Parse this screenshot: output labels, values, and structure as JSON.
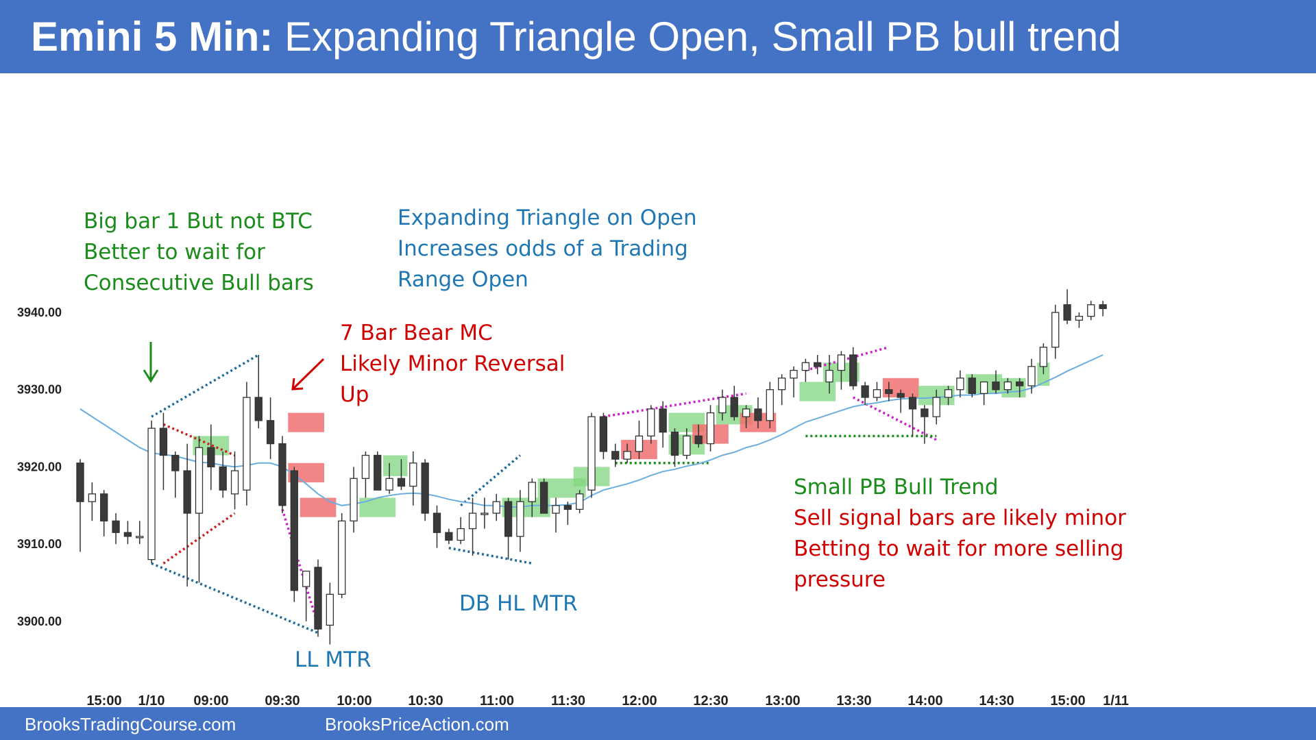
{
  "header": {
    "title_bold": "Emini 5 Min:",
    "title_rest": "Expanding Triangle Open, Small PB bull trend"
  },
  "footer": {
    "left_link": "BrooksTradingCourse.com",
    "right_link": "BrooksPriceAction.com"
  },
  "colors": {
    "header_bg": "#4472c4",
    "bull_highlight": "#7fd67f",
    "bear_highlight": "#f07070",
    "ema_line": "#6aaee0",
    "green_text": "#1a8c1a",
    "blue_text": "#1f77b4",
    "red_text": "#d00000",
    "magenta_dots": "#cc22cc",
    "navy_dots": "#1f6b9a"
  },
  "chart_data": {
    "type": "candlestick",
    "ylim": [
      3896,
      3946
    ],
    "y_ticks": [
      "3940.00",
      "3930.00",
      "3920.00",
      "3910.00",
      "3900.00"
    ],
    "x_ticks": [
      "15:00",
      "1/10",
      "09:00",
      "09:30",
      "10:00",
      "10:30",
      "11:00",
      "11:30",
      "12:00",
      "12:30",
      "13:00",
      "13:30",
      "14:00",
      "14:30",
      "15:00",
      "1/11"
    ],
    "bars": [
      {
        "o": 3920.5,
        "h": 3921.0,
        "l": 3909.0,
        "c": 3915.5
      },
      {
        "o": 3915.5,
        "h": 3918.0,
        "l": 3913.0,
        "c": 3916.5
      },
      {
        "o": 3916.5,
        "h": 3917.0,
        "l": 3911.0,
        "c": 3913.0
      },
      {
        "o": 3913.0,
        "h": 3914.0,
        "l": 3910.0,
        "c": 3911.5
      },
      {
        "o": 3911.5,
        "h": 3913.0,
        "l": 3910.0,
        "c": 3911.0
      },
      {
        "o": 3911.0,
        "h": 3913.0,
        "l": 3910.0,
        "c": 3911.0
      },
      {
        "o": 3908.0,
        "h": 3926.0,
        "l": 3907.5,
        "c": 3925.0
      },
      {
        "o": 3925.0,
        "h": 3927.0,
        "l": 3917.0,
        "c": 3921.5
      },
      {
        "o": 3921.5,
        "h": 3922.0,
        "l": 3916.0,
        "c": 3919.5
      },
      {
        "o": 3919.5,
        "h": 3923.0,
        "l": 3904.5,
        "c": 3914.0
      },
      {
        "o": 3914.0,
        "h": 3924.0,
        "l": 3905.0,
        "c": 3922.5
      },
      {
        "o": 3922.5,
        "h": 3925.5,
        "l": 3917.0,
        "c": 3920.0
      },
      {
        "o": 3920.0,
        "h": 3922.0,
        "l": 3916.0,
        "c": 3917.0
      },
      {
        "o": 3916.5,
        "h": 3922.0,
        "l": 3914.5,
        "c": 3919.5
      },
      {
        "o": 3917.0,
        "h": 3931.0,
        "l": 3915.0,
        "c": 3929.0
      },
      {
        "o": 3929.0,
        "h": 3934.5,
        "l": 3925.0,
        "c": 3926.0
      },
      {
        "o": 3926.0,
        "h": 3929.0,
        "l": 3921.0,
        "c": 3923.0
      },
      {
        "o": 3923.0,
        "h": 3924.0,
        "l": 3914.0,
        "c": 3915.0
      },
      {
        "o": 3919.5,
        "h": 3920.0,
        "l": 3902.5,
        "c": 3904.0
      },
      {
        "o": 3904.5,
        "h": 3906.0,
        "l": 3900.0,
        "c": 3906.5
      },
      {
        "o": 3907.0,
        "h": 3908.0,
        "l": 3898.0,
        "c": 3899.0
      },
      {
        "o": 3899.5,
        "h": 3905.0,
        "l": 3897.0,
        "c": 3903.5
      },
      {
        "o": 3903.5,
        "h": 3914.0,
        "l": 3903.0,
        "c": 3913.0
      },
      {
        "o": 3913.0,
        "h": 3920.0,
        "l": 3911.5,
        "c": 3918.5
      },
      {
        "o": 3918.5,
        "h": 3922.0,
        "l": 3916.0,
        "c": 3921.5
      },
      {
        "o": 3921.5,
        "h": 3922.0,
        "l": 3917.0,
        "c": 3917.0
      },
      {
        "o": 3917.0,
        "h": 3920.5,
        "l": 3916.5,
        "c": 3918.5
      },
      {
        "o": 3918.5,
        "h": 3921.0,
        "l": 3917.0,
        "c": 3917.5
      },
      {
        "o": 3917.5,
        "h": 3922.0,
        "l": 3915.0,
        "c": 3920.5
      },
      {
        "o": 3920.5,
        "h": 3921.0,
        "l": 3913.0,
        "c": 3914.0
      },
      {
        "o": 3914.0,
        "h": 3915.0,
        "l": 3909.5,
        "c": 3911.5
      },
      {
        "o": 3911.5,
        "h": 3912.0,
        "l": 3910.0,
        "c": 3910.5
      },
      {
        "o": 3910.5,
        "h": 3913.5,
        "l": 3910.0,
        "c": 3912.0
      },
      {
        "o": 3912.0,
        "h": 3916.0,
        "l": 3908.5,
        "c": 3914.0
      },
      {
        "o": 3914.0,
        "h": 3916.0,
        "l": 3912.0,
        "c": 3914.0
      },
      {
        "o": 3914.0,
        "h": 3916.5,
        "l": 3913.0,
        "c": 3915.5
      },
      {
        "o": 3915.5,
        "h": 3916.0,
        "l": 3908.0,
        "c": 3911.0
      },
      {
        "o": 3911.0,
        "h": 3917.0,
        "l": 3909.0,
        "c": 3915.5
      },
      {
        "o": 3915.5,
        "h": 3918.5,
        "l": 3913.5,
        "c": 3918.0
      },
      {
        "o": 3918.0,
        "h": 3918.5,
        "l": 3914.0,
        "c": 3914.0
      },
      {
        "o": 3914.0,
        "h": 3916.0,
        "l": 3911.5,
        "c": 3915.0
      },
      {
        "o": 3915.0,
        "h": 3915.5,
        "l": 3912.5,
        "c": 3914.5
      },
      {
        "o": 3914.5,
        "h": 3917.0,
        "l": 3914.0,
        "c": 3916.5
      },
      {
        "o": 3917.0,
        "h": 3927.0,
        "l": 3916.0,
        "c": 3926.5
      },
      {
        "o": 3926.5,
        "h": 3927.0,
        "l": 3921.0,
        "c": 3922.0
      },
      {
        "o": 3922.0,
        "h": 3923.0,
        "l": 3920.0,
        "c": 3921.0
      },
      {
        "o": 3921.0,
        "h": 3923.0,
        "l": 3920.5,
        "c": 3922.0
      },
      {
        "o": 3922.0,
        "h": 3926.0,
        "l": 3921.0,
        "c": 3924.0
      },
      {
        "o": 3924.0,
        "h": 3928.0,
        "l": 3923.0,
        "c": 3927.5
      },
      {
        "o": 3927.5,
        "h": 3928.5,
        "l": 3922.5,
        "c": 3924.5
      },
      {
        "o": 3924.5,
        "h": 3925.0,
        "l": 3920.0,
        "c": 3921.5
      },
      {
        "o": 3921.5,
        "h": 3925.0,
        "l": 3921.0,
        "c": 3924.0
      },
      {
        "o": 3924.0,
        "h": 3925.5,
        "l": 3922.5,
        "c": 3923.0
      },
      {
        "o": 3923.0,
        "h": 3928.0,
        "l": 3922.0,
        "c": 3927.0
      },
      {
        "o": 3927.0,
        "h": 3930.0,
        "l": 3926.0,
        "c": 3929.0
      },
      {
        "o": 3929.0,
        "h": 3930.5,
        "l": 3926.0,
        "c": 3926.5
      },
      {
        "o": 3926.5,
        "h": 3928.0,
        "l": 3925.0,
        "c": 3927.5
      },
      {
        "o": 3927.5,
        "h": 3929.0,
        "l": 3925.0,
        "c": 3926.0
      },
      {
        "o": 3926.0,
        "h": 3931.0,
        "l": 3925.0,
        "c": 3930.0
      },
      {
        "o": 3930.0,
        "h": 3932.0,
        "l": 3928.0,
        "c": 3931.5
      },
      {
        "o": 3931.5,
        "h": 3933.0,
        "l": 3929.0,
        "c": 3932.5
      },
      {
        "o": 3932.5,
        "h": 3934.0,
        "l": 3931.0,
        "c": 3933.5
      },
      {
        "o": 3933.5,
        "h": 3934.5,
        "l": 3932.0,
        "c": 3933.0
      },
      {
        "o": 3931.0,
        "h": 3934.5,
        "l": 3929.5,
        "c": 3932.5
      },
      {
        "o": 3932.5,
        "h": 3935.0,
        "l": 3930.0,
        "c": 3934.5
      },
      {
        "o": 3934.5,
        "h": 3935.5,
        "l": 3930.0,
        "c": 3930.5
      },
      {
        "o": 3930.5,
        "h": 3931.0,
        "l": 3928.0,
        "c": 3929.0
      },
      {
        "o": 3929.0,
        "h": 3931.0,
        "l": 3928.5,
        "c": 3930.0
      },
      {
        "o": 3930.0,
        "h": 3931.0,
        "l": 3928.5,
        "c": 3929.5
      },
      {
        "o": 3929.5,
        "h": 3930.0,
        "l": 3927.0,
        "c": 3929.0
      },
      {
        "o": 3929.0,
        "h": 3929.5,
        "l": 3924.0,
        "c": 3927.5
      },
      {
        "o": 3927.5,
        "h": 3928.0,
        "l": 3923.0,
        "c": 3926.5
      },
      {
        "o": 3926.5,
        "h": 3930.0,
        "l": 3925.5,
        "c": 3929.0
      },
      {
        "o": 3929.0,
        "h": 3930.5,
        "l": 3928.0,
        "c": 3930.0
      },
      {
        "o": 3930.0,
        "h": 3932.5,
        "l": 3929.0,
        "c": 3931.5
      },
      {
        "o": 3931.5,
        "h": 3932.0,
        "l": 3929.0,
        "c": 3929.5
      },
      {
        "o": 3929.5,
        "h": 3931.0,
        "l": 3928.0,
        "c": 3931.0
      },
      {
        "o": 3931.0,
        "h": 3932.5,
        "l": 3929.5,
        "c": 3930.0
      },
      {
        "o": 3930.0,
        "h": 3931.5,
        "l": 3929.5,
        "c": 3931.0
      },
      {
        "o": 3931.0,
        "h": 3931.5,
        "l": 3929.0,
        "c": 3930.5
      },
      {
        "o": 3930.5,
        "h": 3934.0,
        "l": 3929.5,
        "c": 3933.0
      },
      {
        "o": 3933.0,
        "h": 3936.0,
        "l": 3932.0,
        "c": 3935.5
      },
      {
        "o": 3935.5,
        "h": 3941.0,
        "l": 3934.0,
        "c": 3940.0
      },
      {
        "o": 3941.0,
        "h": 3943.0,
        "l": 3938.5,
        "c": 3939.0
      },
      {
        "o": 3939.0,
        "h": 3940.0,
        "l": 3938.0,
        "c": 3939.5
      },
      {
        "o": 3939.5,
        "h": 3941.5,
        "l": 3939.0,
        "c": 3941.0
      },
      {
        "o": 3941.0,
        "h": 3941.5,
        "l": 3939.5,
        "c": 3940.5
      }
    ],
    "ema_20": [
      3927.5,
      3926.5,
      3925.5,
      3924.5,
      3923.5,
      3922.5,
      3921.8,
      3921.6,
      3921.4,
      3921.0,
      3920.6,
      3920.5,
      3920.2,
      3920.0,
      3920.2,
      3920.5,
      3920.5,
      3920.0,
      3919.0,
      3917.8,
      3916.5,
      3915.5,
      3915.0,
      3915.2,
      3915.5,
      3916.0,
      3916.3,
      3916.5,
      3916.6,
      3916.5,
      3916.2,
      3915.8,
      3915.5,
      3915.3,
      3915.0,
      3915.0,
      3914.8,
      3914.8,
      3915.0,
      3915.0,
      3915.0,
      3915.1,
      3915.4,
      3916.3,
      3917.0,
      3917.4,
      3917.8,
      3918.3,
      3918.9,
      3919.4,
      3919.7,
      3920.1,
      3920.4,
      3920.9,
      3921.5,
      3921.9,
      3922.5,
      3922.9,
      3923.5,
      3924.2,
      3925.0,
      3925.8,
      3926.3,
      3926.8,
      3927.3,
      3927.8,
      3928.1,
      3928.3,
      3928.6,
      3928.8,
      3928.9,
      3928.9,
      3929.0,
      3929.1,
      3929.3,
      3929.3,
      3929.5,
      3929.5,
      3929.7,
      3929.8,
      3930.2,
      3930.9,
      3931.6,
      3932.4,
      3933.1,
      3933.8,
      3934.5
    ],
    "annotations": {
      "big_bar": [
        "Big bar 1 But not BTC",
        "Better to wait for",
        "Consecutive Bull bars"
      ],
      "expanding": [
        "Expanding  Triangle  on Open",
        "Increases odds of a Trading",
        "Range Open"
      ],
      "bear_mc": [
        "7 Bar Bear MC",
        "Likely Minor Reversal",
        "Up"
      ],
      "ll_mtr": "LL MTR",
      "db_hl_mtr": "DB HL MTR",
      "small_pb_title": "Small PB Bull Trend",
      "small_pb_lines": [
        "Sell signal bars are likely minor",
        "Betting  to wait for more selling",
        "pressure"
      ]
    }
  }
}
